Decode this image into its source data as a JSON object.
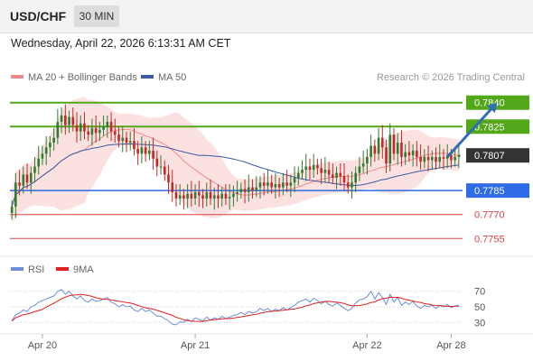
{
  "header": {
    "symbol": "USD/CHF",
    "interval": "30 MIN",
    "datetime": "Wednesday, April 22, 2026 6:13:31 AM CET"
  },
  "legend": {
    "ma20_label": "MA 20 + Bollinger Bands",
    "ma50_label": "MA 50",
    "ma20_color": "#f08a8a",
    "ma50_color": "#3a5aa6",
    "credit": "Research © 2026 Trading Central"
  },
  "rsi_legend": {
    "rsi_label": "RSI",
    "ma9_label": "9MA",
    "rsi_color": "#6f8fdc",
    "ma9_color": "#e02020"
  },
  "chart_data": [
    {
      "type": "candlestick",
      "title": "",
      "ylim": [
        0.7745,
        0.785
      ],
      "x_ticks": [
        "Apr 20",
        "Apr 21",
        "Apr 22",
        "Apr 28"
      ],
      "x_tick_positions": [
        8,
        48,
        93,
        115
      ],
      "x_count": 118,
      "bullish_color": "#2e7d32",
      "bearish_color": "#c62828",
      "current_price": {
        "label": "0.7807",
        "value": 0.7807,
        "color": "#333333"
      },
      "levels": [
        {
          "label": "0.7840",
          "value": 0.784,
          "color": "#52a818",
          "type": "resistance"
        },
        {
          "label": "0.7825",
          "value": 0.7825,
          "color": "#52a818",
          "type": "resistance"
        },
        {
          "label": "0.7785",
          "value": 0.7785,
          "color": "#2e6be6",
          "type": "pivot"
        },
        {
          "label": "0.7770",
          "value": 0.777,
          "color": "#e04040",
          "type": "support"
        },
        {
          "label": "0.7755",
          "value": 0.7755,
          "color": "#e04040",
          "type": "support"
        }
      ],
      "arrow": {
        "from": [
          114,
          0.7806
        ],
        "to": [
          127,
          0.784
        ],
        "color": "#2f6db5"
      },
      "close_series": [
        0.7775,
        0.779,
        0.7788,
        0.7795,
        0.779,
        0.7796,
        0.78,
        0.7805,
        0.7808,
        0.7812,
        0.7815,
        0.7818,
        0.7828,
        0.7832,
        0.7826,
        0.7831,
        0.7826,
        0.7822,
        0.7827,
        0.7822,
        0.782,
        0.7824,
        0.7821,
        0.7823,
        0.7825,
        0.7828,
        0.7822,
        0.782,
        0.7816,
        0.7818,
        0.7815,
        0.7816,
        0.7811,
        0.7808,
        0.7812,
        0.7808,
        0.781,
        0.7805,
        0.78,
        0.78,
        0.7795,
        0.779,
        0.7784,
        0.778,
        0.7782,
        0.778,
        0.7783,
        0.778,
        0.7784,
        0.7782,
        0.778,
        0.7784,
        0.778,
        0.7782,
        0.778,
        0.7783,
        0.778,
        0.7781,
        0.7783,
        0.7784,
        0.7786,
        0.7784,
        0.7787,
        0.7785,
        0.7787,
        0.779,
        0.7788,
        0.779,
        0.7787,
        0.7789,
        0.7787,
        0.779,
        0.7788,
        0.779,
        0.7793,
        0.7796,
        0.7798,
        0.78,
        0.7798,
        0.7801,
        0.7799,
        0.7796,
        0.7798,
        0.7795,
        0.7793,
        0.7796,
        0.7794,
        0.779,
        0.7787,
        0.779,
        0.7796,
        0.78,
        0.7802,
        0.7806,
        0.7813,
        0.7808,
        0.7818,
        0.7812,
        0.7802,
        0.782,
        0.7808,
        0.7815,
        0.7806,
        0.7809,
        0.7807,
        0.781,
        0.7806,
        0.7803,
        0.7806,
        0.7804,
        0.7806,
        0.7803,
        0.7806,
        0.7805,
        0.7807,
        0.7804,
        0.7806,
        0.7807
      ]
    },
    {
      "type": "line",
      "title": "RSI",
      "ylim": [
        20,
        80
      ],
      "y_ticks": [
        70,
        50,
        30
      ],
      "series": [
        {
          "name": "RSI",
          "color": "#6f8fdc"
        },
        {
          "name": "9MA",
          "color": "#e02020"
        }
      ],
      "rsi_values": [
        32,
        40,
        42,
        46,
        44,
        50,
        52,
        56,
        58,
        60,
        62,
        64,
        70,
        72,
        66,
        70,
        64,
        60,
        64,
        58,
        56,
        60,
        57,
        58,
        60,
        62,
        56,
        54,
        50,
        53,
        50,
        51,
        46,
        44,
        48,
        44,
        46,
        42,
        38,
        38,
        35,
        32,
        28,
        27,
        31,
        30,
        34,
        31,
        36,
        34,
        32,
        37,
        33,
        36,
        34,
        38,
        35,
        37,
        39,
        40,
        43,
        40,
        44,
        42,
        44,
        48,
        45,
        48,
        44,
        47,
        45,
        49,
        46,
        49,
        52,
        56,
        58,
        60,
        56,
        61,
        58,
        54,
        57,
        53,
        51,
        55,
        52,
        48,
        45,
        48,
        55,
        59,
        60,
        63,
        70,
        60,
        68,
        62,
        53,
        66,
        56,
        62,
        52,
        56,
        53,
        57,
        51,
        48,
        52,
        50,
        52,
        48,
        52,
        50,
        53,
        49,
        51,
        52
      ]
    }
  ]
}
